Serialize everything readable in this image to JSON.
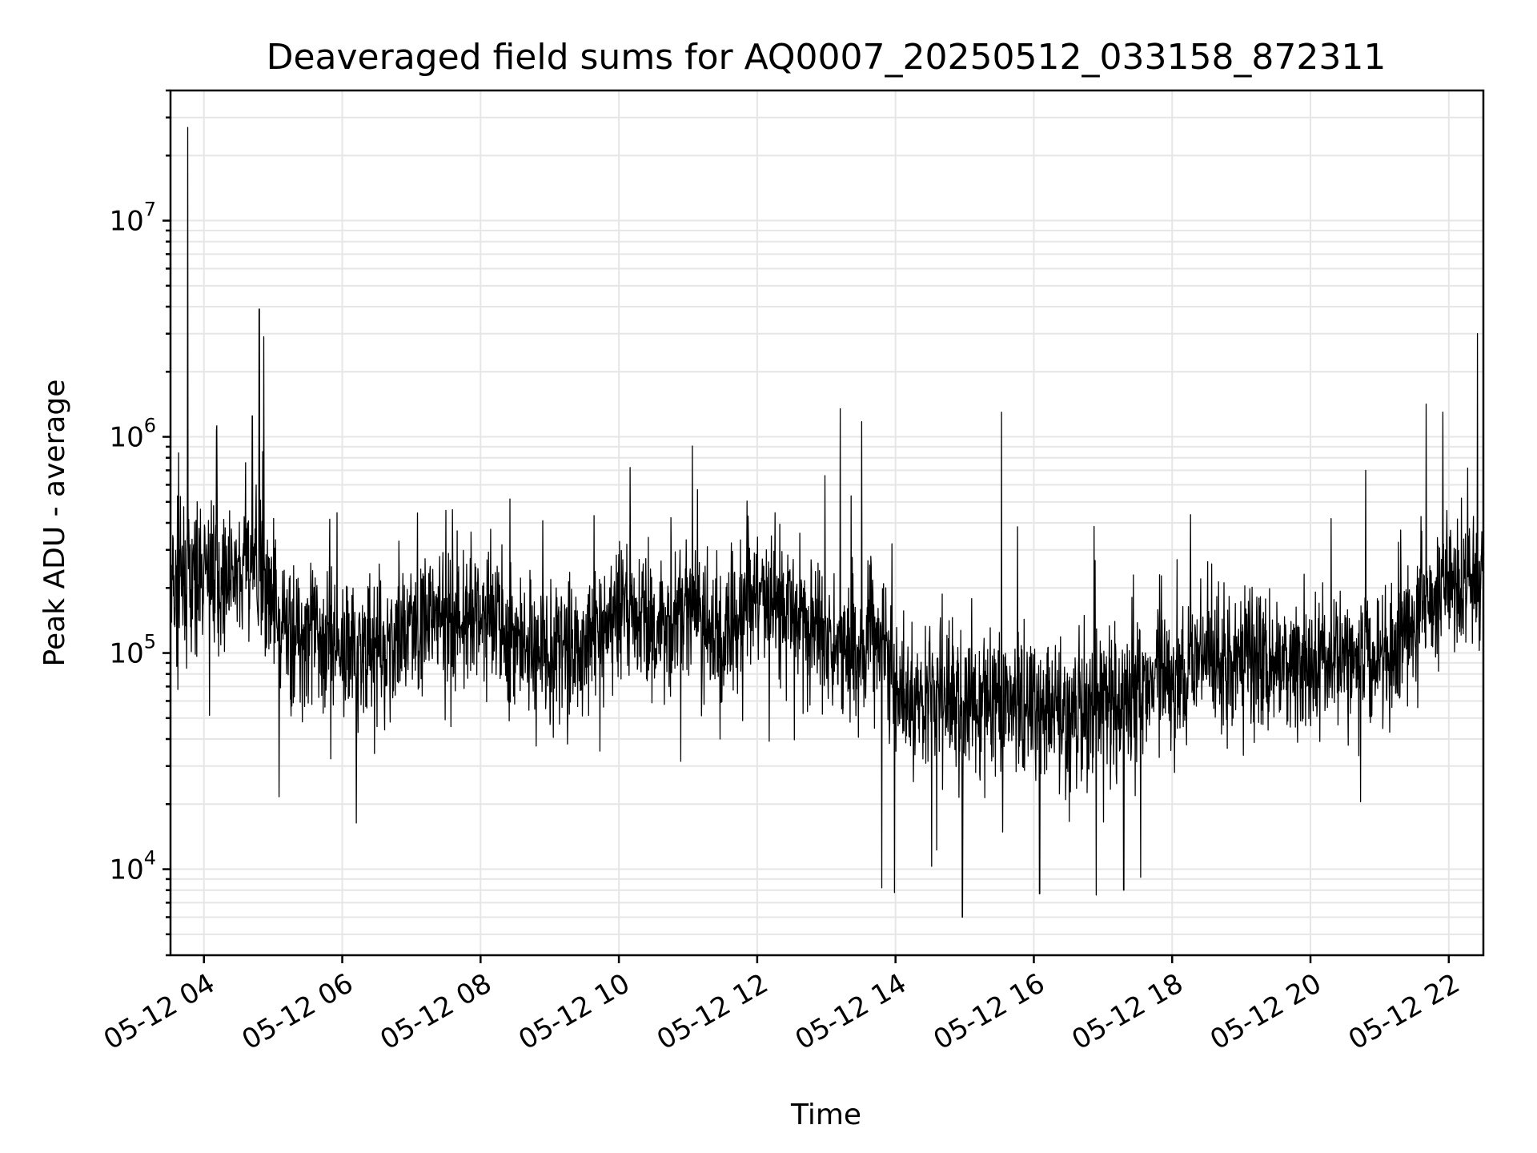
{
  "chart_data": {
    "type": "line",
    "title": "Deaveraged field sums for AQ0007_20250512_033158_872311",
    "xlabel": "Time",
    "ylabel": "Peak ADU - average",
    "yscale": "log",
    "grid": true,
    "grid_minor": true,
    "line_color": "#000000",
    "xlim": [
      "2025-05-12 03:31",
      "2025-05-12 22:30"
    ],
    "ylim": [
      4000,
      40000000
    ],
    "x_ticks": [
      "05-12 04",
      "05-12 06",
      "05-12 08",
      "05-12 10",
      "05-12 12",
      "05-12 14",
      "05-12 16",
      "05-12 18",
      "05-12 20",
      "05-12 22"
    ],
    "y_ticks": [
      {
        "base": "10",
        "exp": "4",
        "value": 10000
      },
      {
        "base": "10",
        "exp": "5",
        "value": 100000
      },
      {
        "base": "10",
        "exp": "6",
        "value": 1000000
      },
      {
        "base": "10",
        "exp": "7",
        "value": 10000000
      }
    ],
    "series": [
      {
        "x": [
          "2025-05-12 03:32",
          "2025-05-12 03:45",
          "2025-05-12 04:00",
          "2025-05-12 04:15",
          "2025-05-12 04:30",
          "2025-05-12 04:45",
          "2025-05-12 05:00",
          "2025-05-12 05:30",
          "2025-05-12 06:00",
          "2025-05-12 06:30",
          "2025-05-12 07:00",
          "2025-05-12 07:30",
          "2025-05-12 08:00",
          "2025-05-12 08:30",
          "2025-05-12 09:00",
          "2025-05-12 09:30",
          "2025-05-12 10:00",
          "2025-05-12 10:30",
          "2025-05-12 11:00",
          "2025-05-12 11:30",
          "2025-05-12 12:00",
          "2025-05-12 12:30",
          "2025-05-12 13:00",
          "2025-05-12 13:30",
          "2025-05-12 13:50",
          "2025-05-12 14:00",
          "2025-05-12 14:30",
          "2025-05-12 15:00",
          "2025-05-12 15:30",
          "2025-05-12 16:00",
          "2025-05-12 16:30",
          "2025-05-12 17:00",
          "2025-05-12 17:30",
          "2025-05-12 18:00",
          "2025-05-12 18:30",
          "2025-05-12 19:00",
          "2025-05-12 19:30",
          "2025-05-12 20:00",
          "2025-05-12 20:30",
          "2025-05-12 21:00",
          "2025-05-12 21:30",
          "2025-05-12 22:00",
          "2025-05-12 22:29"
        ],
        "y": [
          200000,
          190000,
          230000,
          220000,
          220000,
          240000,
          130000,
          125000,
          110000,
          100000,
          130000,
          150000,
          150000,
          120000,
          100000,
          110000,
          150000,
          135000,
          170000,
          120000,
          180000,
          160000,
          120000,
          110000,
          125000,
          65000,
          62000,
          55000,
          60000,
          55000,
          52000,
          58000,
          65000,
          80000,
          95000,
          100000,
          85000,
          90000,
          100000,
          95000,
          150000,
          200000,
          220000
        ]
      }
    ],
    "annotations": [
      {
        "x": "2025-05-12 03:46",
        "y": 27000000
      },
      {
        "x": "2025-05-12 04:48",
        "y": 3900000
      },
      {
        "x": "2025-05-12 04:52",
        "y": 2900000
      },
      {
        "x": "2025-05-12 04:42",
        "y": 1250000
      },
      {
        "x": "2025-05-12 13:12",
        "y": 1350000
      },
      {
        "x": "2025-05-12 15:32",
        "y": 1300000
      },
      {
        "x": "2025-05-12 22:25",
        "y": 3000000
      },
      {
        "x": "2025-05-12 21:55",
        "y": 1300000
      },
      {
        "x": "2025-05-12 20:48",
        "y": 700000
      },
      {
        "x": "2025-05-12 13:48",
        "y": 8200
      },
      {
        "x": "2025-05-12 13:59",
        "y": 7800
      },
      {
        "x": "2025-05-12 14:58",
        "y": 6000
      },
      {
        "x": "2025-05-12 16:05",
        "y": 7700
      },
      {
        "x": "2025-05-12 17:18",
        "y": 8000
      }
    ]
  }
}
